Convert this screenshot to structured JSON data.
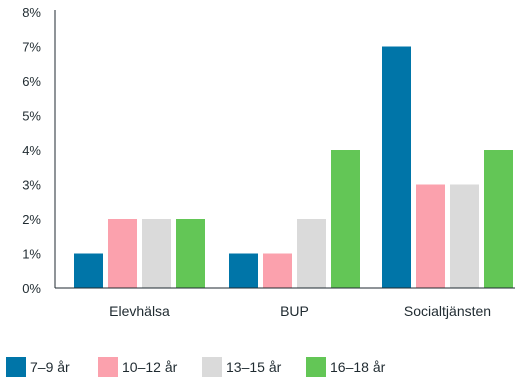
{
  "chart_data": {
    "type": "bar",
    "categories": [
      "Elevhälsa",
      "BUP",
      "Socialtjänsten"
    ],
    "series": [
      {
        "name": "7–9 år",
        "color": "#0075a8",
        "values": [
          1,
          1,
          7
        ]
      },
      {
        "name": "10–12 år",
        "color": "#fba1ad",
        "values": [
          2,
          1,
          3
        ]
      },
      {
        "name": "13–15 år",
        "color": "#dadada",
        "values": [
          2,
          2,
          3
        ]
      },
      {
        "name": "16–18 år",
        "color": "#63c656",
        "values": [
          2,
          4,
          4
        ]
      }
    ],
    "yticks": [
      "0%",
      "1%",
      "2%",
      "3%",
      "4%",
      "5%",
      "6%",
      "7%",
      "8%"
    ],
    "ylim": [
      0,
      8
    ],
    "y_unit": "%",
    "grid": false,
    "legend_position": "bottom"
  }
}
